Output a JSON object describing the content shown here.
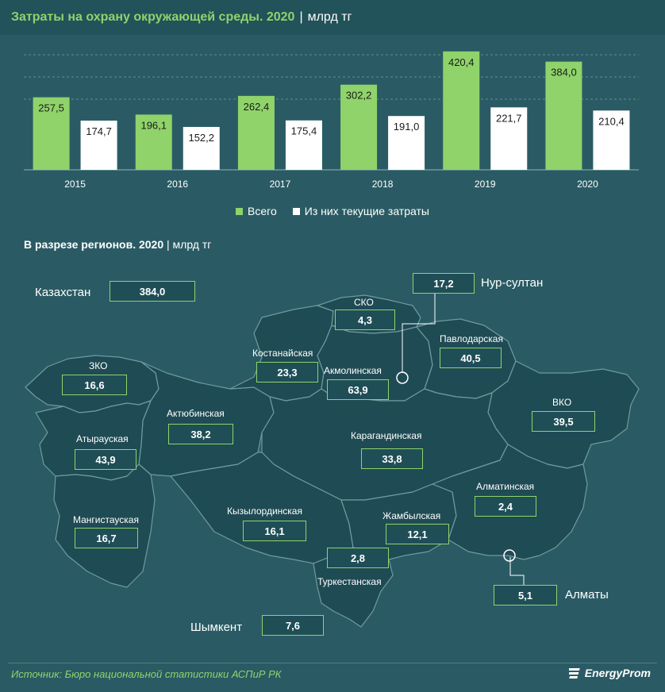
{
  "header": {
    "title": "Затраты на охрану окружающей среды. 2020",
    "separator": "|",
    "unit": "млрд тг"
  },
  "colors": {
    "total": "#8fd36a",
    "current": "#ffffff",
    "background": "#2a5b64",
    "region_fill": "#1f4b54",
    "accent": "#8fd36a"
  },
  "chart_data": {
    "type": "bar",
    "title": "Затраты на охрану окружающей среды. 2020",
    "unit": "млрд тг",
    "categories": [
      "2015",
      "2016",
      "2017",
      "2018",
      "2019",
      "2020"
    ],
    "series": [
      {
        "name": "Всего",
        "values": [
          257.5,
          196.1,
          262.4,
          302.2,
          420.4,
          384.0
        ],
        "labels": [
          "257,5",
          "196,1",
          "262,4",
          "302,2",
          "420,4",
          "384,0"
        ]
      },
      {
        "name": "Из них текущие затраты",
        "values": [
          174.7,
          152.2,
          175.4,
          191.0,
          221.7,
          210.4
        ],
        "labels": [
          "174,7",
          "152,2",
          "175,4",
          "191,0",
          "221,7",
          "210,4"
        ]
      }
    ],
    "ylim": [
      0,
      500
    ],
    "legend_position": "bottom"
  },
  "legend": {
    "total": "Всего",
    "current": "Из них текущие затраты"
  },
  "regions_section": {
    "title": "В разрезе регионов.  2020",
    "separator": "|",
    "unit": "млрд тг"
  },
  "kazakhstan": {
    "label": "Казахстан",
    "value": "384,0"
  },
  "regions": {
    "zko": {
      "name": "ЗКО",
      "value": "16,6"
    },
    "aktobe": {
      "name": "Актюбинская",
      "value": "38,2"
    },
    "atyrau": {
      "name": "Атырауская",
      "value": "43,9"
    },
    "mangystau": {
      "name": "Мангистауская",
      "value": "16,7"
    },
    "kostanay": {
      "name": "Костанайская",
      "value": "23,3"
    },
    "sko": {
      "name": "СКО",
      "value": "4,3"
    },
    "akmola": {
      "name": "Акмолинская",
      "value": "63,9"
    },
    "pavlodar": {
      "name": "Павлодарская",
      "value": "40,5"
    },
    "vko": {
      "name": "ВКО",
      "value": "39,5"
    },
    "karaganda": {
      "name": "Карагандинская",
      "value": "33,8"
    },
    "kyzylorda": {
      "name": "Кызылординская",
      "value": "16,1"
    },
    "zhambyl": {
      "name": "Жамбылская",
      "value": "12,1"
    },
    "almaty_region": {
      "name": "Алматинская",
      "value": "2,4"
    },
    "turkestan": {
      "name": "Туркестанская",
      "value": "2,8"
    }
  },
  "cities": {
    "nur_sultan": {
      "name": "Нур-султан",
      "value": "17,2"
    },
    "almaty": {
      "name": "Алматы",
      "value": "5,1"
    },
    "shymkent": {
      "name": "Шымкент",
      "value": "7,6"
    }
  },
  "footer": {
    "source": "Источник: Бюро национальной  статистики АСПиР РК",
    "logo": "EnergyProm"
  }
}
